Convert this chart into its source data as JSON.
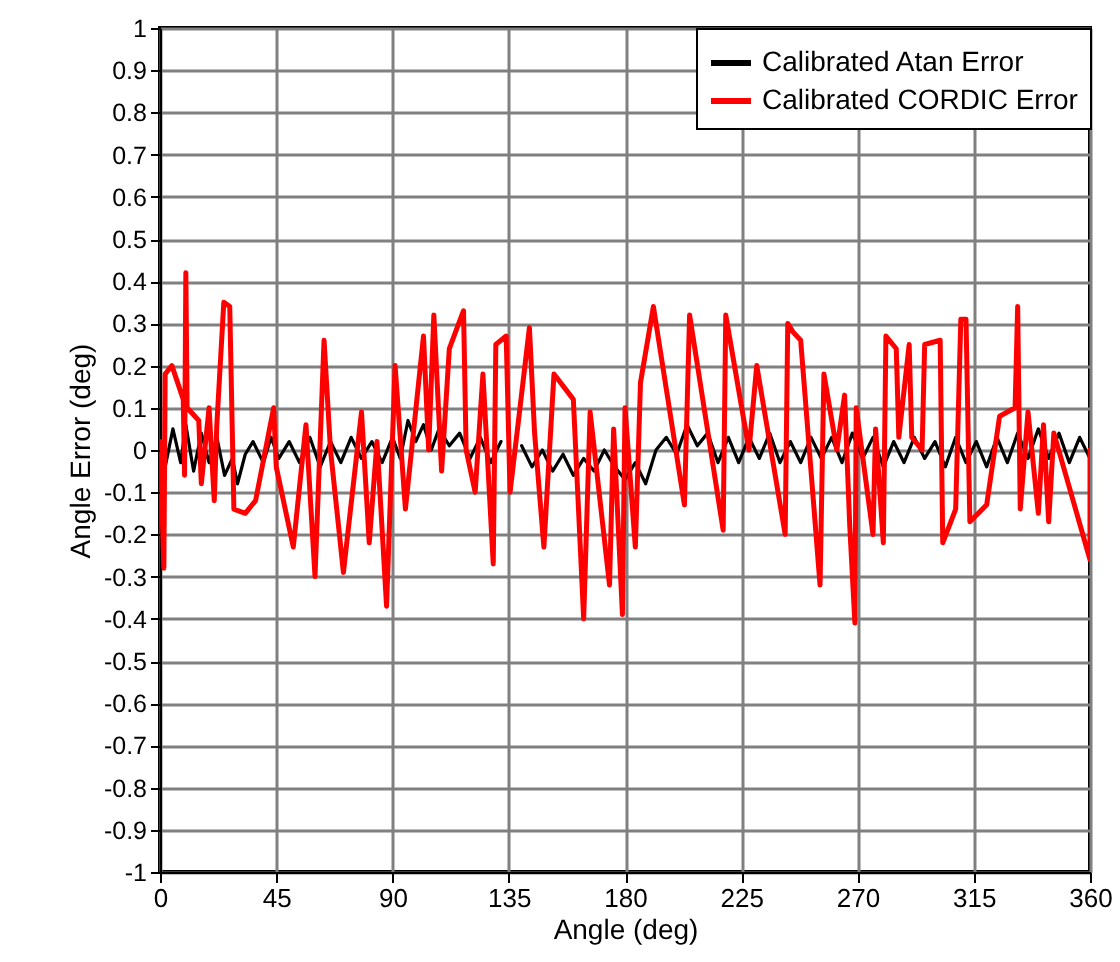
{
  "chart_data": {
    "type": "line",
    "xlabel": "Angle (deg)",
    "ylabel": "Angle Error (deg)",
    "xlim": [
      0,
      360
    ],
    "xticks": [
      0,
      45,
      90,
      135,
      180,
      225,
      270,
      315,
      360
    ],
    "ylim": [
      -1,
      1
    ],
    "yticks": [
      -1,
      -0.9,
      -0.8,
      -0.7,
      -0.6,
      -0.5,
      -0.4,
      -0.3,
      -0.2,
      -0.1,
      0,
      0.1,
      0.2,
      0.3,
      0.4,
      0.5,
      0.6,
      0.7,
      0.8,
      0.9,
      1
    ],
    "grid": true,
    "legend": "top right",
    "series": [
      {
        "name": "Calibrated Atan Error",
        "color": "#000000",
        "x": [
          0,
          2,
          5,
          8,
          10,
          13,
          16,
          19,
          22,
          25,
          28,
          30,
          33,
          36,
          40,
          43,
          46,
          50,
          54,
          58,
          62,
          66,
          70,
          74,
          78,
          82,
          86,
          90,
          93,
          96,
          99,
          102,
          105,
          108,
          112,
          116,
          120,
          124,
          128,
          132,
          136,
          140,
          144,
          148,
          152,
          156,
          160,
          164,
          168,
          172,
          176,
          180,
          184,
          188,
          192,
          196,
          200,
          204,
          208,
          212,
          216,
          220,
          224,
          228,
          232,
          236,
          240,
          244,
          248,
          252,
          256,
          260,
          264,
          268,
          272,
          276,
          280,
          284,
          288,
          292,
          296,
          300,
          304,
          308,
          312,
          316,
          320,
          324,
          328,
          332,
          336,
          340,
          344,
          348,
          352,
          356,
          360
        ],
        "values": [
          0.03,
          -0.04,
          0.05,
          -0.03,
          0.06,
          -0.05,
          0.04,
          -0.03,
          0.03,
          -0.06,
          -0.02,
          -0.08,
          -0.01,
          0.02,
          -0.03,
          0.03,
          -0.02,
          0.02,
          -0.03,
          0.03,
          -0.04,
          0.02,
          -0.03,
          0.03,
          -0.02,
          0.02,
          -0.03,
          0.03,
          -0.02,
          0.07,
          0.02,
          0.06,
          0.0,
          0.05,
          0.01,
          0.04,
          -0.02,
          0.03,
          -0.03,
          0.02,
          null,
          0.01,
          -0.04,
          0.0,
          -0.05,
          -0.01,
          -0.06,
          -0.02,
          -0.05,
          0.0,
          -0.04,
          -0.07,
          -0.03,
          -0.08,
          0.0,
          0.03,
          -0.01,
          0.06,
          0.01,
          0.04,
          -0.03,
          0.03,
          -0.03,
          0.03,
          -0.02,
          0.04,
          -0.03,
          0.02,
          -0.03,
          0.03,
          -0.02,
          0.03,
          -0.03,
          0.04,
          -0.02,
          0.03,
          -0.04,
          0.02,
          -0.03,
          0.03,
          -0.02,
          0.02,
          -0.04,
          0.03,
          -0.03,
          0.02,
          -0.04,
          0.03,
          -0.03,
          0.04,
          -0.02,
          0.05,
          -0.02,
          0.04,
          -0.03,
          0.03,
          -0.02
        ]
      },
      {
        "name": "Calibrated CORDIC Error",
        "color": "#ff0000",
        "x": [
          0,
          1.5,
          2,
          4.6,
          9,
          9.5,
          10,
          10.5,
          15,
          16,
          19,
          21,
          22,
          24.7,
          27,
          28.6,
          33,
          37,
          44,
          45,
          51.6,
          56.5,
          60,
          63.5,
          66,
          71,
          78,
          81,
          84,
          87.7,
          91,
          95,
          102,
          104,
          106,
          109,
          112,
          117.5,
          118.5,
          122,
          125,
          129,
          130,
          134,
          135.5,
          143,
          145,
          148.6,
          152.5,
          160,
          164,
          166.5,
          174,
          175.6,
          179,
          180,
          184,
          186,
          191,
          203,
          205,
          218,
          219,
          228,
          231,
          242,
          243,
          245,
          248,
          255.5,
          257,
          262,
          265,
          267,
          269,
          269.5,
          276,
          277,
          280,
          281,
          285,
          286,
          290,
          291,
          295,
          296,
          302,
          303,
          308,
          310,
          312,
          313.5,
          320,
          325,
          331,
          332,
          333,
          336,
          340,
          342,
          344,
          346,
          360,
          360
        ],
        "values": [
          0.02,
          -0.28,
          0.18,
          0.2,
          0.12,
          -0.06,
          0.42,
          0.1,
          0.07,
          -0.08,
          0.1,
          -0.12,
          0.06,
          0.35,
          0.34,
          -0.14,
          -0.15,
          -0.12,
          0.1,
          -0.04,
          -0.23,
          0.06,
          -0.3,
          0.26,
          0.0,
          -0.29,
          0.09,
          -0.22,
          0.02,
          -0.37,
          0.2,
          -0.14,
          0.27,
          0.0,
          0.32,
          -0.05,
          0.24,
          0.33,
          0.0,
          -0.1,
          0.18,
          -0.27,
          0.25,
          0.27,
          -0.1,
          0.29,
          0.04,
          -0.23,
          0.18,
          0.12,
          -0.4,
          0.09,
          -0.32,
          0.05,
          -0.39,
          0.1,
          -0.23,
          0.16,
          0.34,
          -0.13,
          0.32,
          -0.19,
          0.32,
          0.0,
          0.2,
          -0.2,
          0.3,
          0.28,
          0.26,
          -0.32,
          0.18,
          0.0,
          0.13,
          -0.18,
          -0.41,
          0.1,
          -0.2,
          0.05,
          -0.22,
          0.27,
          0.24,
          0.03,
          0.25,
          0.03,
          0.0,
          0.25,
          0.26,
          -0.22,
          -0.14,
          0.31,
          0.31,
          -0.17,
          -0.13,
          0.08,
          0.1,
          0.34,
          -0.14,
          0.09,
          -0.15,
          0.06,
          -0.17,
          0.04,
          -0.26,
          0.0
        ]
      }
    ]
  }
}
